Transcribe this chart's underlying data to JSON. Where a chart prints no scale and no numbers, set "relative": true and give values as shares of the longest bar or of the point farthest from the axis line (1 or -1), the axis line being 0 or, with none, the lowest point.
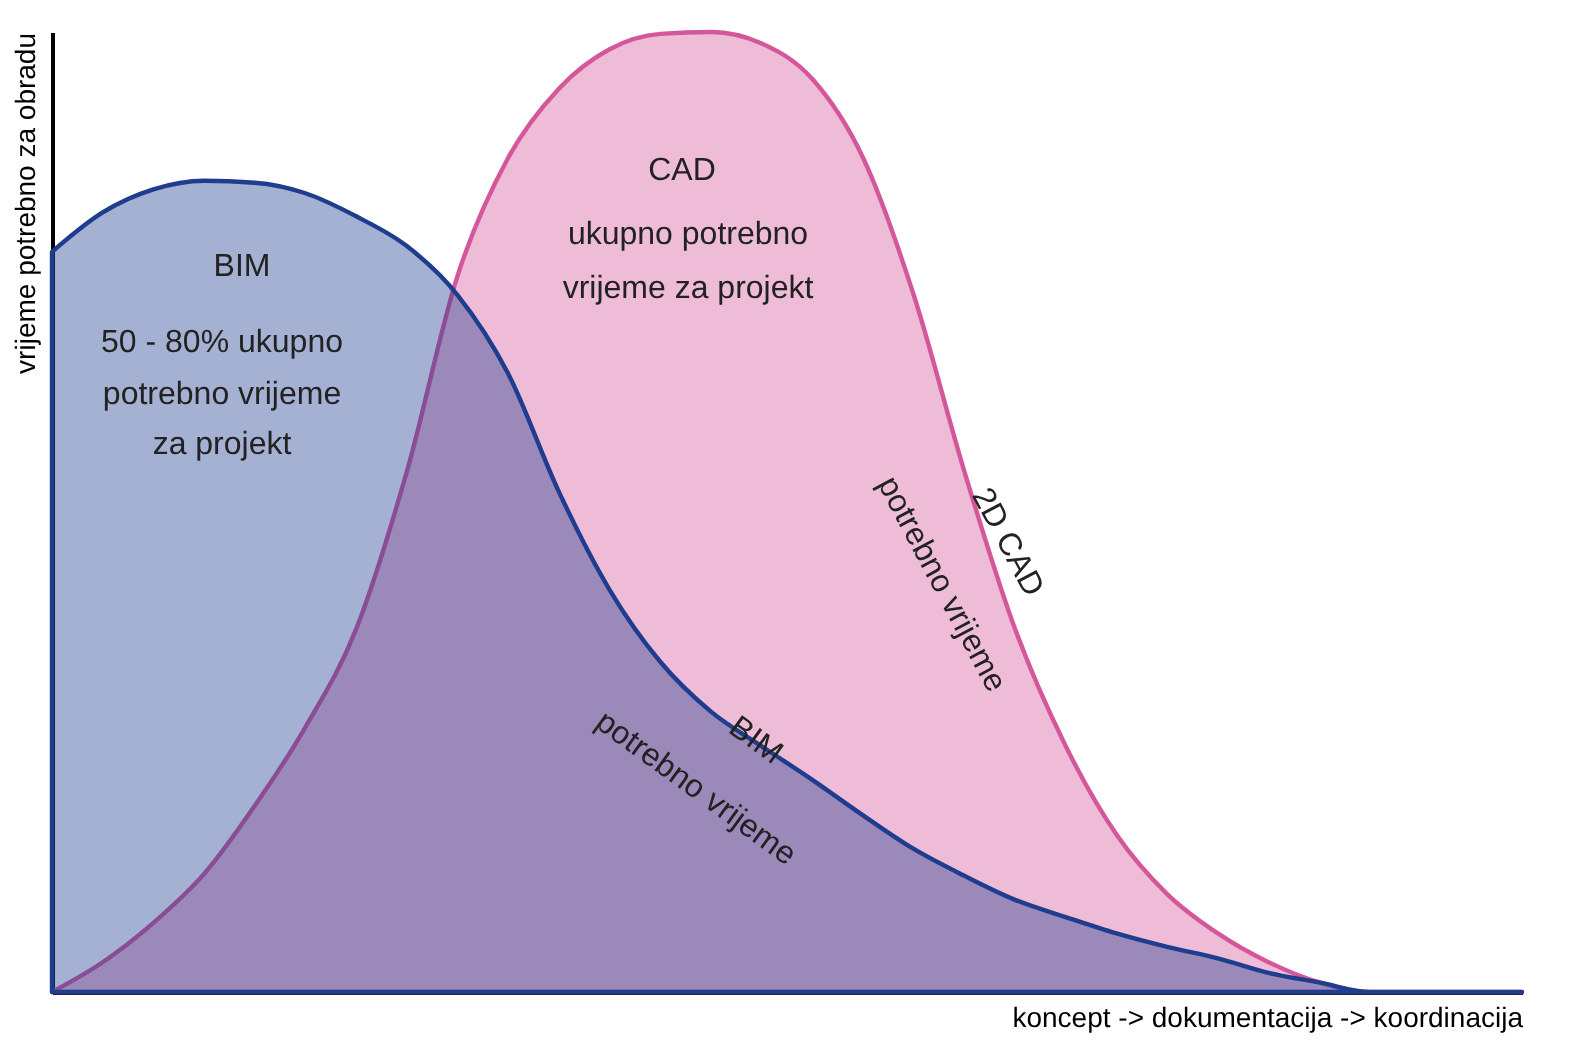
{
  "chart_data": {
    "type": "area",
    "relative": true,
    "xlabel": "koncept -> dokumentacija -> koordinacija",
    "ylabel": "vrijeme potrebno za obradu",
    "categories": [
      null,
      null,
      null,
      null,
      null,
      null,
      null,
      null,
      null,
      null,
      null,
      null,
      null,
      null,
      null,
      null,
      null,
      null,
      null,
      null,
      null,
      null,
      null,
      null,
      null,
      null,
      null,
      null,
      null,
      null
    ],
    "series": [
      {
        "name": "CAD",
        "color": "#d4579c",
        "values": [
          0,
          0.031,
          0.072,
          0.123,
          0.194,
          0.276,
          0.378,
          0.542,
          0.746,
          0.869,
          0.941,
          0.982,
          0.998,
          1.0,
          0.988,
          0.951,
          0.869,
          0.726,
          0.542,
          0.378,
          0.256,
          0.164,
          0.102,
          0.061,
          0.031,
          0.01,
          0,
          0,
          0,
          0
        ]
      },
      {
        "name": "BIM",
        "color": "#1f3d8f",
        "values": [
          0.771,
          0.812,
          0.836,
          0.845,
          0.843,
          0.832,
          0.808,
          0.777,
          0.726,
          0.644,
          0.521,
          0.419,
          0.344,
          0.292,
          0.256,
          0.221,
          0.184,
          0.149,
          0.121,
          0.096,
          0.078,
          0.061,
          0.047,
          0.035,
          0.02,
          0.01,
          0,
          0,
          0,
          0
        ]
      }
    ],
    "annotations": [
      "ukupno potrebno",
      "vrijeme za projekt",
      "50 - 80% ukupno",
      "potrebno vrijeme",
      "za projekt",
      "2D CAD",
      "potrebno vrijeme",
      "BIM",
      "potrebno vrijeme"
    ],
    "grid": false
  }
}
